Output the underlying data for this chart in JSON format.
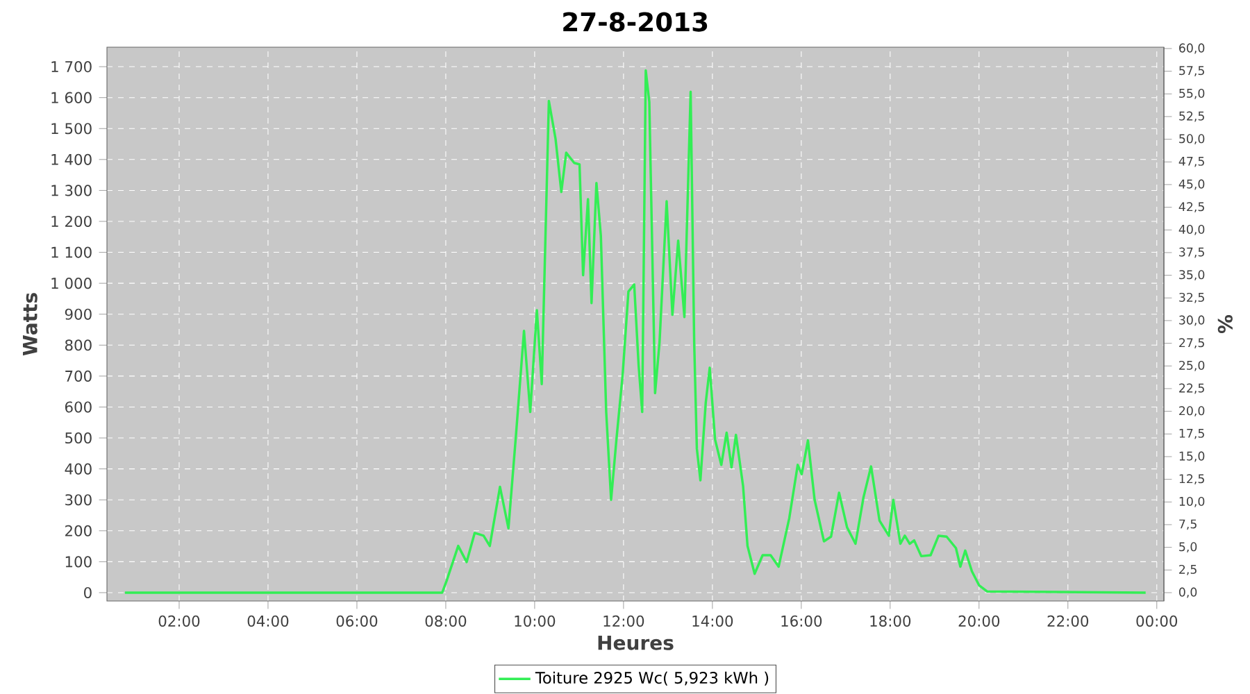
{
  "chart_data": {
    "type": "line",
    "title": "27-8-2013",
    "xlabel": "Heures",
    "ylabel": "Watts",
    "y2label": "%",
    "xlim": [
      0.375,
      24.16
    ],
    "ylim": [
      -27,
      1763
    ],
    "y2lim": [
      -0.92,
      60.15
    ],
    "xticks": [
      {
        "value": 2,
        "label": "02:00"
      },
      {
        "value": 4,
        "label": "04:00"
      },
      {
        "value": 6,
        "label": "06:00"
      },
      {
        "value": 8,
        "label": "08:00"
      },
      {
        "value": 10,
        "label": "10:00"
      },
      {
        "value": 12,
        "label": "12:00"
      },
      {
        "value": 14,
        "label": "14:00"
      },
      {
        "value": 16,
        "label": "16:00"
      },
      {
        "value": 18,
        "label": "18:00"
      },
      {
        "value": 20,
        "label": "20:00"
      },
      {
        "value": 22,
        "label": "22:00"
      },
      {
        "value": 24,
        "label": "00:00"
      }
    ],
    "yticks": [
      0,
      100,
      200,
      300,
      400,
      500,
      600,
      700,
      800,
      900,
      {
        "value": 1000,
        "label": "1 000"
      },
      {
        "value": 1100,
        "label": "1 100"
      },
      {
        "value": 1200,
        "label": "1 200"
      },
      {
        "value": 1300,
        "label": "1 300"
      },
      {
        "value": 1400,
        "label": "1 400"
      },
      {
        "value": 1500,
        "label": "1 500"
      },
      {
        "value": 1600,
        "label": "1 600"
      },
      {
        "value": 1700,
        "label": "1 700"
      }
    ],
    "y2ticks": [
      {
        "value": 0,
        "label": "0,0"
      },
      {
        "value": 2.5,
        "label": "2,5"
      },
      {
        "value": 5,
        "label": "5,0"
      },
      {
        "value": 7.5,
        "label": "7,5"
      },
      {
        "value": 10,
        "label": "10,0"
      },
      {
        "value": 12.5,
        "label": "12,5"
      },
      {
        "value": 15,
        "label": "15,0"
      },
      {
        "value": 17.5,
        "label": "17,5"
      },
      {
        "value": 20,
        "label": "20,0"
      },
      {
        "value": 22.5,
        "label": "22,5"
      },
      {
        "value": 25,
        "label": "25,0"
      },
      {
        "value": 27.5,
        "label": "27,5"
      },
      {
        "value": 30,
        "label": "30,0"
      },
      {
        "value": 32.5,
        "label": "32,5"
      },
      {
        "value": 35,
        "label": "35,0"
      },
      {
        "value": 37.5,
        "label": "37,5"
      },
      {
        "value": 40,
        "label": "40,0"
      },
      {
        "value": 42.5,
        "label": "42,5"
      },
      {
        "value": 45,
        "label": "45,0"
      },
      {
        "value": 47.5,
        "label": "47,5"
      },
      {
        "value": 50,
        "label": "50,0"
      },
      {
        "value": 52.5,
        "label": "52,5"
      },
      {
        "value": 55,
        "label": "55,0"
      },
      {
        "value": 57.5,
        "label": "57,5"
      },
      {
        "value": 60,
        "label": "60,0"
      }
    ],
    "grid": true,
    "legend": "bottom",
    "series": [
      {
        "name": "Toiture 2925 Wc( 5,923 kWh )",
        "color": "#33ee55",
        "x": [
          0.78,
          7.92,
          8.02,
          8.28,
          8.47,
          8.65,
          8.85,
          8.99,
          9.22,
          9.41,
          9.58,
          9.76,
          9.9,
          10.05,
          10.16,
          10.32,
          10.47,
          10.6,
          10.71,
          10.89,
          11.01,
          11.09,
          11.2,
          11.28,
          11.39,
          11.49,
          11.61,
          11.72,
          11.84,
          11.98,
          12.11,
          12.24,
          12.34,
          12.42,
          12.5,
          12.58,
          12.71,
          12.81,
          12.97,
          13.1,
          13.23,
          13.37,
          13.51,
          13.59,
          13.65,
          13.73,
          13.85,
          13.94,
          14.06,
          14.2,
          14.32,
          14.43,
          14.53,
          14.69,
          14.79,
          14.95,
          15.13,
          15.31,
          15.49,
          15.73,
          15.92,
          16.01,
          16.15,
          16.3,
          16.51,
          16.67,
          16.85,
          17.03,
          17.22,
          17.4,
          17.57,
          17.76,
          17.97,
          18.07,
          18.23,
          18.33,
          18.44,
          18.54,
          18.7,
          18.91,
          19.09,
          19.27,
          19.48,
          19.58,
          19.69,
          19.84,
          20.0,
          20.18,
          23.75
        ],
        "values": [
          0,
          0,
          39,
          151,
          99,
          193,
          184,
          151,
          342,
          208,
          510,
          846,
          584,
          913,
          674,
          1589,
          1467,
          1295,
          1422,
          1389,
          1384,
          1026,
          1272,
          936,
          1324,
          1153,
          584,
          300,
          495,
          704,
          973,
          996,
          734,
          584,
          1688,
          1586,
          645,
          809,
          1265,
          898,
          1138,
          891,
          1619,
          809,
          465,
          363,
          614,
          727,
          495,
          413,
          517,
          405,
          510,
          345,
          151,
          61,
          121,
          121,
          84,
          241,
          413,
          383,
          492,
          300,
          166,
          181,
          323,
          211,
          158,
          308,
          408,
          233,
          184,
          300,
          158,
          184,
          158,
          169,
          118,
          121,
          184,
          181,
          144,
          84,
          136,
          69,
          24,
          4,
          0
        ]
      }
    ]
  }
}
